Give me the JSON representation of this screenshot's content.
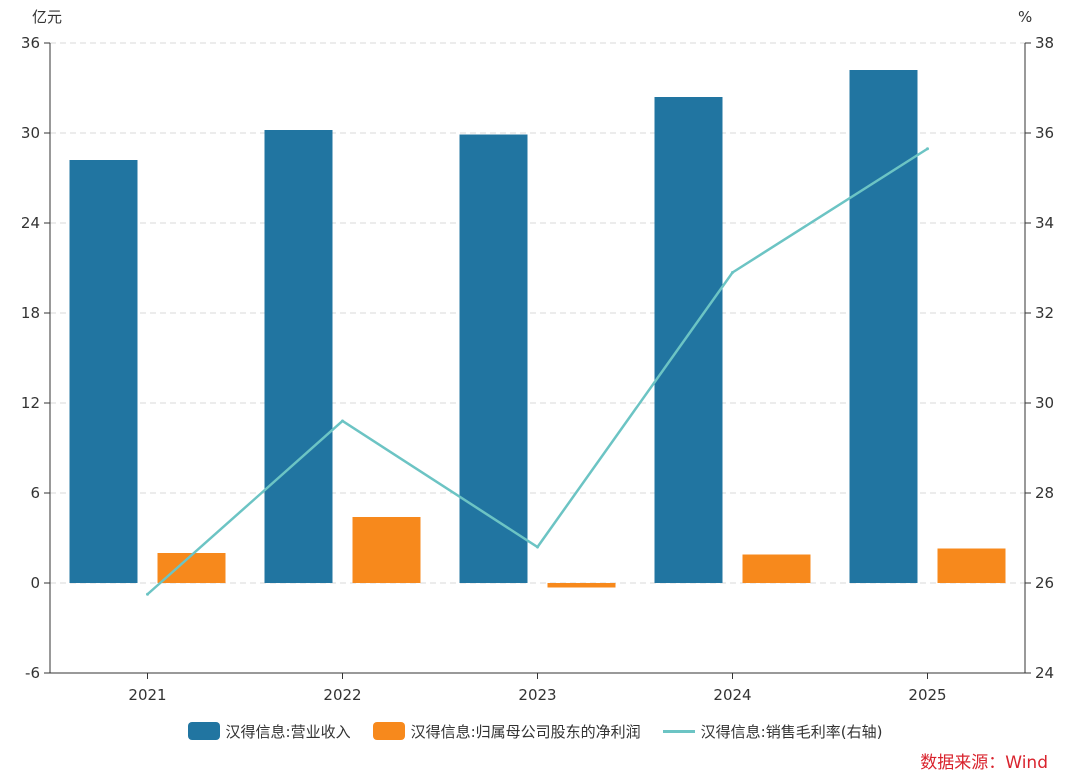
{
  "chart_data": {
    "type": "bar",
    "categories": [
      "2021",
      "2022",
      "2023",
      "2024",
      "2025"
    ],
    "series": [
      {
        "name": "汉得信息:营业收入",
        "type": "bar",
        "axis": "left",
        "color": "#2175a1",
        "values": [
          28.2,
          30.2,
          29.9,
          32.4,
          34.2
        ]
      },
      {
        "name": "汉得信息:归属母公司股东的净利润",
        "type": "bar",
        "axis": "left",
        "color": "#f7891c",
        "values": [
          2.0,
          4.4,
          -0.3,
          1.9,
          2.3
        ]
      },
      {
        "name": "汉得信息:销售毛利率(右轴)",
        "type": "line",
        "axis": "right",
        "color": "#6cc4c4",
        "values": [
          25.75,
          29.6,
          26.8,
          32.9,
          35.65
        ]
      }
    ],
    "left_axis": {
      "unit": "亿元",
      "ylim": [
        -6,
        36
      ],
      "ticks": [
        "-6",
        "0",
        "6",
        "12",
        "18",
        "24",
        "30",
        "36"
      ]
    },
    "right_axis": {
      "unit": "%",
      "ylim": [
        24,
        38
      ],
      "ticks": [
        "24",
        "26",
        "28",
        "30",
        "32",
        "34",
        "36",
        "38"
      ]
    },
    "grid": true,
    "legend_position": "bottom"
  },
  "source": "数据来源：Wind"
}
